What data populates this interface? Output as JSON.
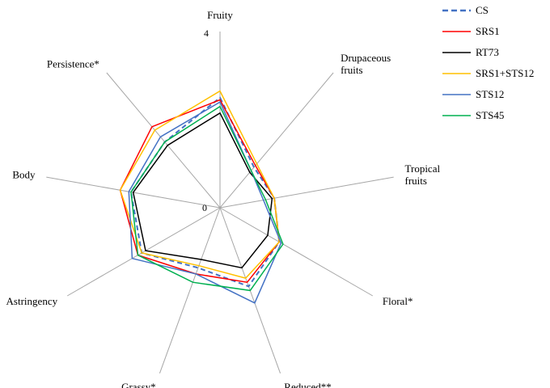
{
  "chart_data": {
    "type": "radar",
    "axes": [
      {
        "label": [
          "Fruity"
        ]
      },
      {
        "label": [
          "Drupaceous",
          "fruits"
        ]
      },
      {
        "label": [
          "Tropical",
          "fruits"
        ]
      },
      {
        "label": [
          "Floral*"
        ]
      },
      {
        "label": [
          "Reduced**"
        ]
      },
      {
        "label": [
          "Grassy*"
        ]
      },
      {
        "label": [
          "Astringency"
        ]
      },
      {
        "label": [
          "Body"
        ]
      },
      {
        "label": [
          "Persistence*"
        ]
      }
    ],
    "range": [
      0,
      4
    ],
    "tick_labels": {
      "min": "0",
      "max": "4"
    },
    "legend_position": "top-right",
    "series": [
      {
        "name": "CS",
        "color": "#4472C4",
        "dash": true,
        "values": [
          2.5,
          1.2,
          1.25,
          1.55,
          1.9,
          1.45,
          2.05,
          2.05,
          1.95
        ]
      },
      {
        "name": "SRS1",
        "color": "#FF0000",
        "dash": false,
        "values": [
          2.45,
          1.25,
          1.25,
          1.55,
          1.8,
          1.6,
          2.15,
          2.3,
          2.4
        ]
      },
      {
        "name": "RT73",
        "color": "#000000",
        "dash": false,
        "values": [
          2.15,
          1.05,
          1.2,
          1.25,
          1.45,
          1.25,
          1.95,
          2.0,
          1.85
        ]
      },
      {
        "name": "SRS1+STS12",
        "color": "#FFC000",
        "dash": false,
        "values": [
          2.65,
          1.3,
          1.25,
          1.55,
          1.7,
          1.4,
          2.05,
          2.3,
          2.3
        ]
      },
      {
        "name": "STS12",
        "color": "#4472C4",
        "dash": false,
        "values": [
          2.4,
          1.1,
          1.0,
          1.6,
          2.3,
          1.6,
          2.3,
          2.1,
          2.1
        ]
      },
      {
        "name": "STS45",
        "color": "#00B050",
        "dash": false,
        "values": [
          2.3,
          1.1,
          1.05,
          1.65,
          2.0,
          1.8,
          2.15,
          2.05,
          1.95
        ]
      }
    ]
  }
}
